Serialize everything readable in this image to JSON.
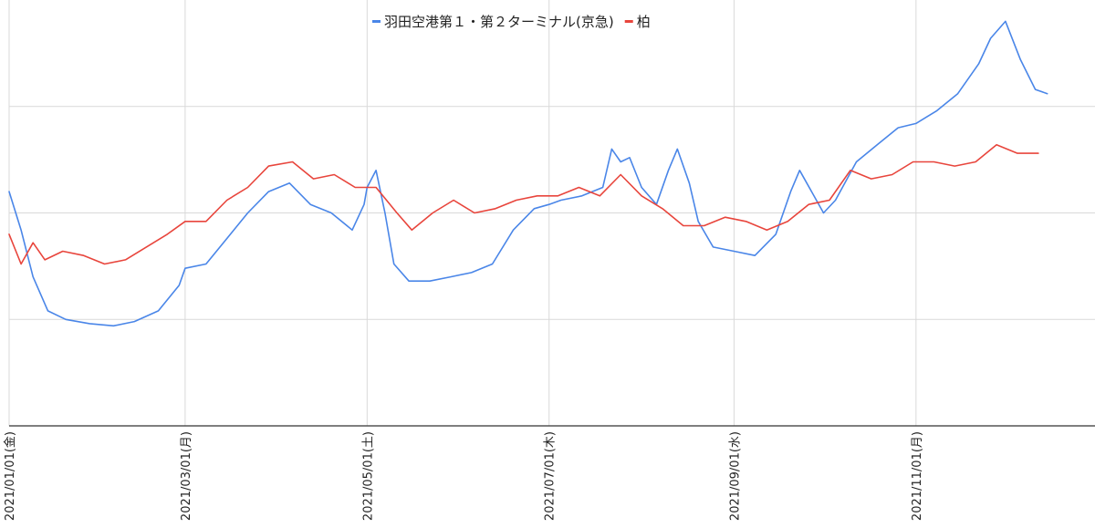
{
  "chart_data": {
    "type": "line",
    "title": "",
    "xlabel": "",
    "ylabel": "",
    "legend_position": "top-center",
    "grid": true,
    "x_range": [
      "2021-01-01",
      "2021-12-31"
    ],
    "y_range": [
      0,
      100
    ],
    "y_ticks_labeled": false,
    "y_grid_values": [
      25,
      50,
      75
    ],
    "x_ticks": [
      {
        "date": "2021-01-01",
        "label": "2021/01/01(金)"
      },
      {
        "date": "2021-03-01",
        "label": "2021/03/01(月)"
      },
      {
        "date": "2021-05-01",
        "label": "2021/05/01(土)"
      },
      {
        "date": "2021-07-01",
        "label": "2021/07/01(木)"
      },
      {
        "date": "2021-09-01",
        "label": "2021/09/01(水)"
      },
      {
        "date": "2021-11-01",
        "label": "2021/11/01(月)"
      }
    ],
    "series": [
      {
        "name": "羽田空港第１・第２ターミナル(京急)",
        "color": "#4a86e8",
        "points": [
          [
            "2021-01-01",
            55
          ],
          [
            "2021-01-05",
            46
          ],
          [
            "2021-01-09",
            35
          ],
          [
            "2021-01-14",
            27
          ],
          [
            "2021-01-20",
            25
          ],
          [
            "2021-01-28",
            24
          ],
          [
            "2021-02-05",
            23.5
          ],
          [
            "2021-02-12",
            24.5
          ],
          [
            "2021-02-20",
            27
          ],
          [
            "2021-02-27",
            33
          ],
          [
            "2021-03-01",
            37
          ],
          [
            "2021-03-08",
            38
          ],
          [
            "2021-03-15",
            44
          ],
          [
            "2021-03-22",
            50
          ],
          [
            "2021-03-29",
            55
          ],
          [
            "2021-04-05",
            57
          ],
          [
            "2021-04-12",
            52
          ],
          [
            "2021-04-19",
            50
          ],
          [
            "2021-04-26",
            46
          ],
          [
            "2021-04-30",
            52
          ],
          [
            "2021-05-01",
            56
          ],
          [
            "2021-05-04",
            60
          ],
          [
            "2021-05-07",
            50
          ],
          [
            "2021-05-10",
            38
          ],
          [
            "2021-05-15",
            34
          ],
          [
            "2021-05-22",
            34
          ],
          [
            "2021-05-29",
            35
          ],
          [
            "2021-06-05",
            36
          ],
          [
            "2021-06-12",
            38
          ],
          [
            "2021-06-19",
            46
          ],
          [
            "2021-06-26",
            51
          ],
          [
            "2021-07-01",
            52
          ],
          [
            "2021-07-05",
            53
          ],
          [
            "2021-07-12",
            54
          ],
          [
            "2021-07-19",
            56
          ],
          [
            "2021-07-22",
            65
          ],
          [
            "2021-07-25",
            62
          ],
          [
            "2021-07-28",
            63
          ],
          [
            "2021-08-01",
            56
          ],
          [
            "2021-08-06",
            52
          ],
          [
            "2021-08-10",
            60
          ],
          [
            "2021-08-13",
            65
          ],
          [
            "2021-08-17",
            57
          ],
          [
            "2021-08-20",
            48
          ],
          [
            "2021-08-25",
            42
          ],
          [
            "2021-09-01",
            41
          ],
          [
            "2021-09-08",
            40
          ],
          [
            "2021-09-15",
            45
          ],
          [
            "2021-09-20",
            55
          ],
          [
            "2021-09-23",
            60
          ],
          [
            "2021-09-27",
            55
          ],
          [
            "2021-10-01",
            50
          ],
          [
            "2021-10-05",
            53
          ],
          [
            "2021-10-12",
            62
          ],
          [
            "2021-10-19",
            66
          ],
          [
            "2021-10-26",
            70
          ],
          [
            "2021-11-01",
            71
          ],
          [
            "2021-11-08",
            74
          ],
          [
            "2021-11-15",
            78
          ],
          [
            "2021-11-22",
            85
          ],
          [
            "2021-11-26",
            91
          ],
          [
            "2021-12-01",
            95
          ],
          [
            "2021-12-06",
            86
          ],
          [
            "2021-12-11",
            79
          ],
          [
            "2021-12-15",
            78
          ]
        ]
      },
      {
        "name": "柏",
        "color": "#e8453c",
        "points": [
          [
            "2021-01-01",
            45
          ],
          [
            "2021-01-05",
            38
          ],
          [
            "2021-01-09",
            43
          ],
          [
            "2021-01-13",
            39
          ],
          [
            "2021-01-19",
            41
          ],
          [
            "2021-01-26",
            40
          ],
          [
            "2021-02-02",
            38
          ],
          [
            "2021-02-09",
            39
          ],
          [
            "2021-02-16",
            42
          ],
          [
            "2021-02-23",
            45
          ],
          [
            "2021-03-01",
            48
          ],
          [
            "2021-03-08",
            48
          ],
          [
            "2021-03-15",
            53
          ],
          [
            "2021-03-22",
            56
          ],
          [
            "2021-03-29",
            61
          ],
          [
            "2021-04-06",
            62
          ],
          [
            "2021-04-13",
            58
          ],
          [
            "2021-04-20",
            59
          ],
          [
            "2021-04-27",
            56
          ],
          [
            "2021-05-04",
            56
          ],
          [
            "2021-05-11",
            50
          ],
          [
            "2021-05-16",
            46
          ],
          [
            "2021-05-23",
            50
          ],
          [
            "2021-05-30",
            53
          ],
          [
            "2021-06-06",
            50
          ],
          [
            "2021-06-13",
            51
          ],
          [
            "2021-06-20",
            53
          ],
          [
            "2021-06-27",
            54
          ],
          [
            "2021-07-04",
            54
          ],
          [
            "2021-07-11",
            56
          ],
          [
            "2021-07-18",
            54
          ],
          [
            "2021-07-25",
            59
          ],
          [
            "2021-08-01",
            54
          ],
          [
            "2021-08-08",
            51
          ],
          [
            "2021-08-15",
            47
          ],
          [
            "2021-08-22",
            47
          ],
          [
            "2021-08-29",
            49
          ],
          [
            "2021-09-05",
            48
          ],
          [
            "2021-09-12",
            46
          ],
          [
            "2021-09-19",
            48
          ],
          [
            "2021-09-26",
            52
          ],
          [
            "2021-10-03",
            53
          ],
          [
            "2021-10-10",
            60
          ],
          [
            "2021-10-17",
            58
          ],
          [
            "2021-10-24",
            59
          ],
          [
            "2021-10-31",
            62
          ],
          [
            "2021-11-07",
            62
          ],
          [
            "2021-11-14",
            61
          ],
          [
            "2021-11-21",
            62
          ],
          [
            "2021-11-28",
            66
          ],
          [
            "2021-12-05",
            64
          ],
          [
            "2021-12-12",
            64
          ]
        ]
      }
    ]
  }
}
